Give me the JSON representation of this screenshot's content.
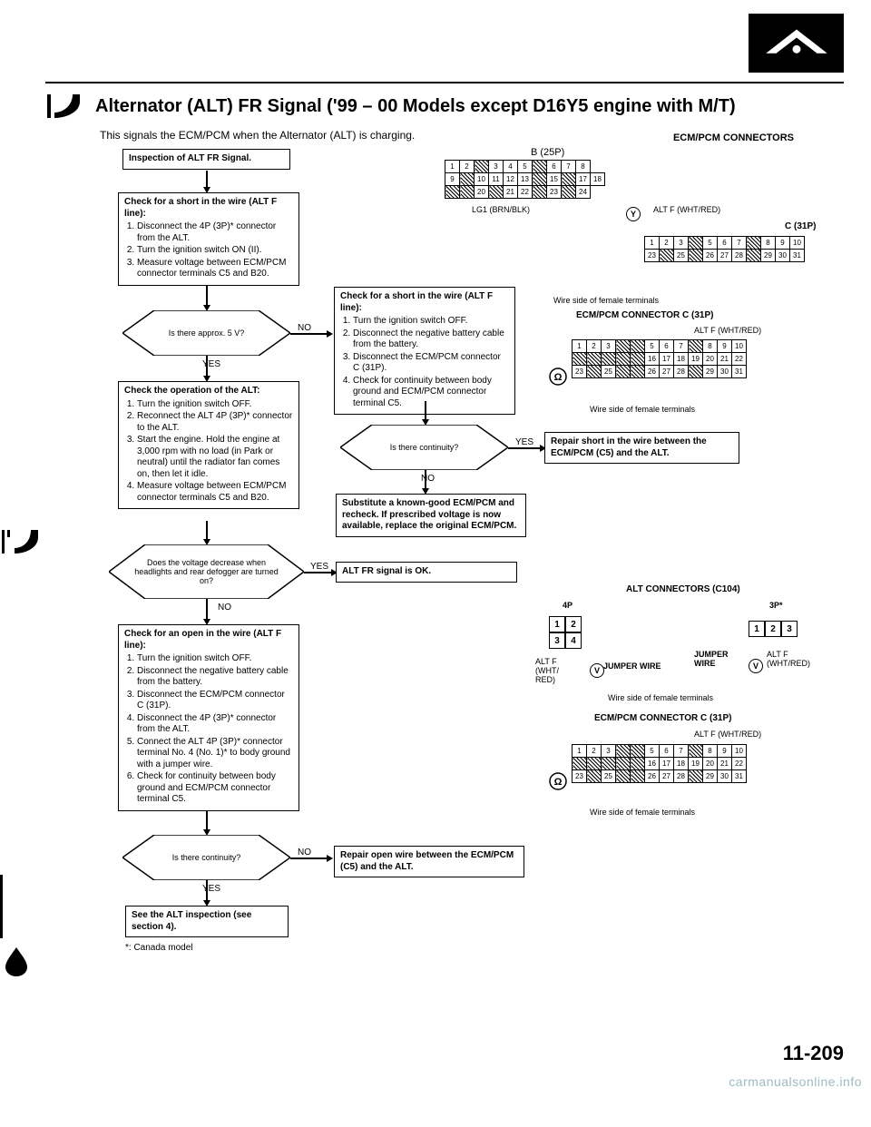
{
  "title": "Alternator (ALT) FR Signal ('99 – 00 Models except D16Y5 engine with M/T)",
  "intro": "This signals the ECM/PCM when the Alternator (ALT) is charging.",
  "right_header": "ECM/PCM CONNECTORS",
  "b_label": "B (25P)",
  "inspection": "Inspection of ALT FR Signal.",
  "check1": {
    "title": "Check for a short in the wire (ALT F line):",
    "items": [
      "Disconnect the 4P (3P)* connector from the ALT.",
      "Turn the ignition switch ON (II).",
      "Measure voltage between ECM/PCM connector terminals C5 and B20."
    ]
  },
  "diamond1": "Is there approx. 5 V?",
  "yes": "YES",
  "no": "NO",
  "check2": {
    "title": "Check the operation of the ALT:",
    "items": [
      "Turn the ignition switch OFF.",
      "Reconnect the ALT 4P (3P)* connector to the ALT.",
      "Start the engine. Hold the engine at 3,000 rpm with no load (in Park or neutral) until the radiator fan comes on, then let it idle.",
      "Measure voltage between ECM/PCM connector terminals C5 and B20."
    ]
  },
  "diamond2": "Does the voltage decrease when headlights and rear defogger are turned on?",
  "check3": {
    "title": "Check for an open in the wire (ALT F line):",
    "items": [
      "Turn the ignition switch OFF.",
      "Disconnect the negative battery cable from the battery.",
      "Disconnect the ECM/PCM connector C (31P).",
      "Disconnect the 4P (3P)* connector from the ALT.",
      "Connect the ALT 4P (3P)* connector terminal No. 4 (No. 1)* to body ground with a jumper wire.",
      "Check for continuity between body ground and ECM/PCM connector terminal C5."
    ]
  },
  "diamond3": "Is there continuity?",
  "check_short2": {
    "title": "Check for a short in the wire (ALT F line):",
    "items": [
      "Turn the ignition switch OFF.",
      "Disconnect the negative battery cable from the battery.",
      "Disconnect the ECM/PCM connector C (31P).",
      "Check for continuity between body ground and ECM/PCM connector terminal C5."
    ]
  },
  "diamond4": "Is there continuity?",
  "repair_short": "Repair short in the wire between the ECM/PCM (C5) and the ALT.",
  "substitute": "Substitute a known-good ECM/PCM and recheck. If prescribed voltage is now available, replace the original ECM/PCM.",
  "alt_ok": "ALT FR signal is OK.",
  "repair_open": "Repair open wire between the ECM/PCM (C5) and the ALT.",
  "see_alt": "See the ALT inspection (see section 4).",
  "footnote": "*: Canada model",
  "lg1": "LG1 (BRN/BLK)",
  "altf_y": "Y",
  "altf_whtred": "ALT F (WHT/RED)",
  "c31p": "C (31P)",
  "wire_side": "Wire side of female terminals",
  "conn_c": "ECM/PCM CONNECTOR C (31P)",
  "alt_conn": "ALT CONNECTORS (C104)",
  "label_4p": "4P",
  "label_3pstar": "3P*",
  "jumper_wire": "JUMPER WIRE",
  "altf_lbl": "ALT F (WHT/RED)",
  "page_num": "11-209",
  "watermark": "carmanualsonline.info",
  "conn_b": {
    "r1": [
      "1",
      "2",
      "",
      "3",
      "4",
      "5",
      "",
      "6",
      "7",
      "8"
    ],
    "r2": [
      "9",
      "",
      "10",
      "11",
      "12",
      "13",
      "",
      "15",
      "",
      "17",
      "18"
    ],
    "r3": [
      "",
      "",
      "20",
      "",
      "21",
      "22",
      "",
      "23",
      "",
      "24"
    ]
  },
  "conn_c_grid": {
    "r1": [
      "1",
      "2",
      "3",
      "",
      "",
      "5",
      "6",
      "7",
      "",
      "8",
      "9",
      "10"
    ],
    "r2": [
      "",
      "",
      "",
      "",
      "",
      "16",
      "17",
      "18",
      "19",
      "20",
      "21",
      "22"
    ],
    "r3": [
      "23",
      "",
      "25",
      "",
      "",
      "26",
      "27",
      "28",
      "",
      "29",
      "30",
      "31"
    ]
  }
}
